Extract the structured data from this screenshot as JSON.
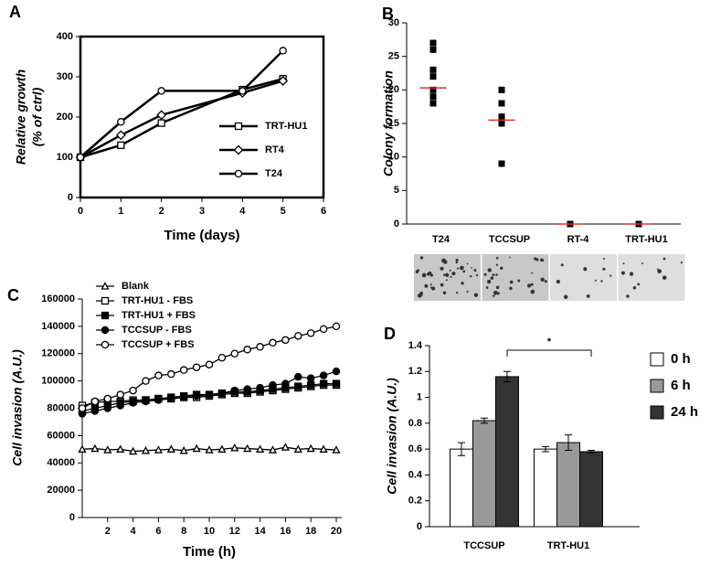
{
  "chart_data": [
    {
      "type": "line",
      "panel": "A",
      "xlabel": "Time (days)",
      "ylabel": [
        "Relative growth",
        "(% of ctrl)"
      ],
      "x": [
        0,
        1,
        2,
        4,
        5
      ],
      "xlim": [
        0,
        6
      ],
      "xticks": [
        0,
        1,
        2,
        3,
        4,
        5,
        6
      ],
      "ylim": [
        0,
        400
      ],
      "yticks": [
        0,
        100,
        200,
        300,
        400
      ],
      "series": [
        {
          "name": "TRT-HU1",
          "marker": "square",
          "color": "#000000",
          "values": [
            100,
            130,
            185,
            268,
            295
          ]
        },
        {
          "name": "RT4",
          "marker": "diamond",
          "color": "#000000",
          "values": [
            100,
            155,
            205,
            260,
            290
          ]
        },
        {
          "name": "T24",
          "marker": "circle",
          "color": "#000000",
          "values": [
            100,
            188,
            265,
            265,
            365
          ]
        }
      ]
    },
    {
      "type": "strip",
      "panel": "B",
      "ylabel": "Colony formation",
      "categories": [
        "T24",
        "TCCSUP",
        "RT-4",
        "TRT-HU1"
      ],
      "points": [
        [
          27,
          26,
          23,
          22,
          20,
          19,
          18
        ],
        [
          20,
          18,
          16,
          15.5,
          15,
          9
        ],
        [
          0
        ],
        [
          0
        ]
      ],
      "medians": [
        20.3,
        15.5,
        0,
        0
      ],
      "median_color": "#e03030",
      "color": "#000000",
      "ylim": [
        0,
        30
      ],
      "yticks": [
        0,
        5,
        10,
        15,
        20,
        25,
        30
      ]
    },
    {
      "type": "line",
      "panel": "C",
      "xlabel": "Time (h)",
      "ylabel": "Cell invasion (A.U.)",
      "x": [
        0,
        1,
        2,
        3,
        4,
        5,
        6,
        7,
        8,
        9,
        10,
        11,
        12,
        13,
        14,
        15,
        16,
        17,
        18,
        19,
        20
      ],
      "xlim": [
        0,
        20
      ],
      "xticks": [
        2,
        4,
        6,
        8,
        10,
        12,
        14,
        16,
        18,
        20
      ],
      "ylim": [
        0,
        160000
      ],
      "yticks": [
        0,
        20000,
        40000,
        60000,
        80000,
        100000,
        120000,
        140000,
        160000
      ],
      "series": [
        {
          "name": "Blank",
          "marker": "triangle",
          "color": "#000000",
          "values": [
            50000,
            50500,
            49500,
            50000,
            48500,
            49000,
            49500,
            50000,
            49000,
            50500,
            49500,
            50000,
            51000,
            50500,
            50000,
            49500,
            51500,
            50000,
            50500,
            50000,
            49500
          ]
        },
        {
          "name": "TRT-HU1 - FBS",
          "marker": "square",
          "color": "#000000",
          "values": [
            82000,
            84000,
            85000,
            85000,
            86000,
            86000,
            87000,
            87000,
            88000,
            88000,
            89000,
            90000,
            91000,
            91000,
            92000,
            93000,
            94000,
            95000,
            96000,
            97000,
            97000
          ]
        },
        {
          "name": "TRT-HU1 + FBS",
          "marker": "square-filled",
          "color": "#000000",
          "values": [
            78000,
            80000,
            82000,
            84000,
            85000,
            86000,
            87000,
            88000,
            89000,
            90000,
            90000,
            91000,
            92000,
            92000,
            93000,
            94000,
            95000,
            96000,
            97000,
            98000,
            98000
          ]
        },
        {
          "name": "TCCSUP - FBS",
          "marker": "circle-filled",
          "color": "#000000",
          "values": [
            76000,
            78000,
            80000,
            82000,
            84000,
            85000,
            86000,
            87000,
            88000,
            89000,
            90000,
            91000,
            93000,
            94000,
            95000,
            97000,
            98000,
            103000,
            102000,
            104000,
            107000
          ]
        },
        {
          "name": "TCCSUP + FBS",
          "marker": "circle",
          "color": "#000000",
          "values": [
            80000,
            85000,
            87000,
            90000,
            93000,
            100000,
            104000,
            105000,
            108000,
            110000,
            112000,
            117000,
            120000,
            123000,
            125000,
            128000,
            130000,
            133000,
            135000,
            138000,
            140000
          ]
        }
      ]
    },
    {
      "type": "bar",
      "panel": "D",
      "ylabel": "Cell invasion (A.U.)",
      "categories": [
        "TCCSUP",
        "TRT-HU1"
      ],
      "ylim": [
        0,
        1.4
      ],
      "yticks": [
        0,
        0.2,
        0.4,
        0.6,
        0.8,
        1,
        1.2,
        1.4
      ],
      "annotation": "*",
      "series": [
        {
          "name": "0 h",
          "color": "#ffffff",
          "values": [
            0.6,
            0.6
          ],
          "errors": [
            0.05,
            0.02
          ]
        },
        {
          "name": "6 h",
          "color": "#999999",
          "values": [
            0.82,
            0.65
          ],
          "errors": [
            0.02,
            0.06
          ]
        },
        {
          "name": "24 h",
          "color": "#333333",
          "values": [
            1.16,
            0.58
          ],
          "errors": [
            0.04,
            0.01
          ]
        }
      ]
    }
  ]
}
